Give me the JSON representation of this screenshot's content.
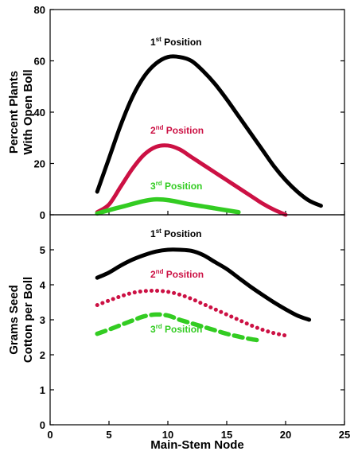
{
  "chart_data": [
    {
      "type": "line",
      "ylabel_lines": [
        "Percent Plants",
        "With Open Boll"
      ],
      "xlim": [
        0,
        25
      ],
      "ylim": [
        0,
        80
      ],
      "y_ticks": [
        0,
        20,
        40,
        60,
        80
      ],
      "series": [
        {
          "name": "1st Position",
          "name_parts": [
            "1",
            "st",
            " Position"
          ],
          "color": "#000000",
          "dash": "solid",
          "x": [
            4,
            5,
            6,
            7,
            8,
            9,
            10,
            11,
            12,
            13,
            14,
            15,
            16,
            17,
            18,
            19,
            20,
            21,
            22,
            23
          ],
          "y": [
            9,
            22,
            35,
            46,
            54,
            59,
            61.5,
            61.5,
            60,
            56,
            51,
            45,
            38.5,
            32,
            25.5,
            19,
            13.5,
            9,
            5.5,
            3.5
          ]
        },
        {
          "name": "2nd Position",
          "name_parts": [
            "2",
            "nd",
            " Position"
          ],
          "color": "#cc1144",
          "dash": "solid",
          "x": [
            4,
            5,
            6,
            7,
            8,
            9,
            10,
            11,
            12,
            13,
            14,
            15,
            16,
            17,
            18,
            19,
            20
          ],
          "y": [
            1,
            4,
            11,
            18,
            23.5,
            26.5,
            27,
            25.5,
            22.5,
            19.5,
            16.5,
            13.5,
            10.5,
            7.5,
            4.5,
            2,
            0
          ]
        },
        {
          "name": "3rd Position",
          "name_parts": [
            "3",
            "rd",
            " Position"
          ],
          "color": "#33cc22",
          "dash": "solid",
          "x": [
            4,
            6,
            9,
            12,
            14,
            16
          ],
          "y": [
            0.5,
            3,
            6,
            4,
            2.5,
            1
          ]
        }
      ]
    },
    {
      "type": "line",
      "xlabel": "Main-Stem Node",
      "ylabel_lines": [
        "Grams Seed",
        "Cotton per Boll"
      ],
      "xlim": [
        0,
        25
      ],
      "ylim": [
        0,
        6
      ],
      "x_ticks": [
        0,
        5,
        10,
        15,
        20,
        25
      ],
      "y_ticks": [
        0,
        1,
        2,
        3,
        4,
        5
      ],
      "series": [
        {
          "name": "1st Position",
          "name_parts": [
            "1",
            "st",
            " Position"
          ],
          "color": "#000000",
          "dash": "solid",
          "x": [
            4,
            5,
            6,
            7,
            8,
            9,
            10,
            11,
            12,
            13,
            14,
            15,
            16,
            17,
            18,
            19,
            20,
            21,
            22
          ],
          "y": [
            4.2,
            4.35,
            4.55,
            4.72,
            4.85,
            4.95,
            5.0,
            5.0,
            4.97,
            4.85,
            4.65,
            4.45,
            4.2,
            3.95,
            3.72,
            3.5,
            3.3,
            3.12,
            3.0
          ]
        },
        {
          "name": "2nd Position",
          "name_parts": [
            "2",
            "nd",
            " Position"
          ],
          "color": "#cc1144",
          "dash": "dotted",
          "x": [
            4,
            5,
            6,
            7,
            8,
            9,
            10,
            11,
            12,
            13,
            14,
            15,
            16,
            17,
            18,
            19,
            20
          ],
          "y": [
            3.42,
            3.55,
            3.67,
            3.77,
            3.82,
            3.83,
            3.8,
            3.72,
            3.6,
            3.45,
            3.3,
            3.15,
            3.0,
            2.85,
            2.72,
            2.62,
            2.55
          ]
        },
        {
          "name": "3rd Position",
          "name_parts": [
            "3",
            "rd",
            " Position"
          ],
          "color": "#33cc22",
          "dash": "dashed",
          "x": [
            4,
            5,
            6,
            7,
            8,
            9,
            10,
            11,
            12,
            13,
            14,
            15,
            16,
            17,
            18
          ],
          "y": [
            2.6,
            2.72,
            2.85,
            2.98,
            3.1,
            3.15,
            3.12,
            3.0,
            2.9,
            2.8,
            2.7,
            2.6,
            2.52,
            2.45,
            2.4
          ]
        }
      ]
    }
  ]
}
